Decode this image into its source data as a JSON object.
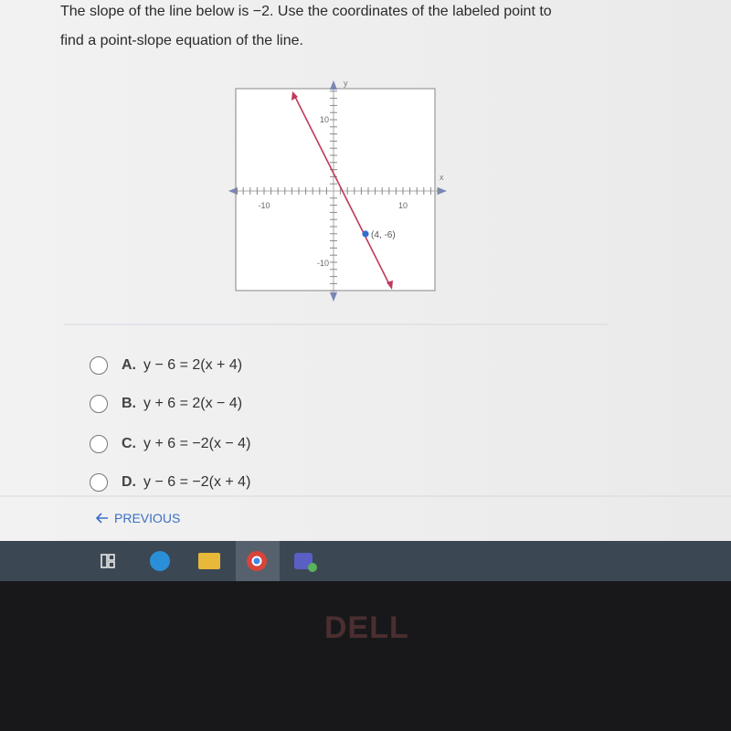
{
  "question": {
    "lines": [
      "The slope of the line below is −2. Use the coordinates of the labeled point to",
      "find a point-slope equation of the line."
    ]
  },
  "graph": {
    "x_label": "x",
    "y_label": "y",
    "x_tick_labels": [
      "-10",
      "10"
    ],
    "y_tick_labels": [
      "10",
      "-10"
    ],
    "point_label": "(4, -6)"
  },
  "options": [
    {
      "letter": "A.",
      "equation": "y − 6 = 2(x + 4)"
    },
    {
      "letter": "B.",
      "equation": "y + 6 = 2(x − 4)"
    },
    {
      "letter": "C.",
      "equation": "y + 6 = −2(x − 4)"
    },
    {
      "letter": "D.",
      "equation": "y − 6 = −2(x + 4)"
    }
  ],
  "nav": {
    "previous": "PREVIOUS"
  },
  "bezel": {
    "brand": "DELL"
  }
}
